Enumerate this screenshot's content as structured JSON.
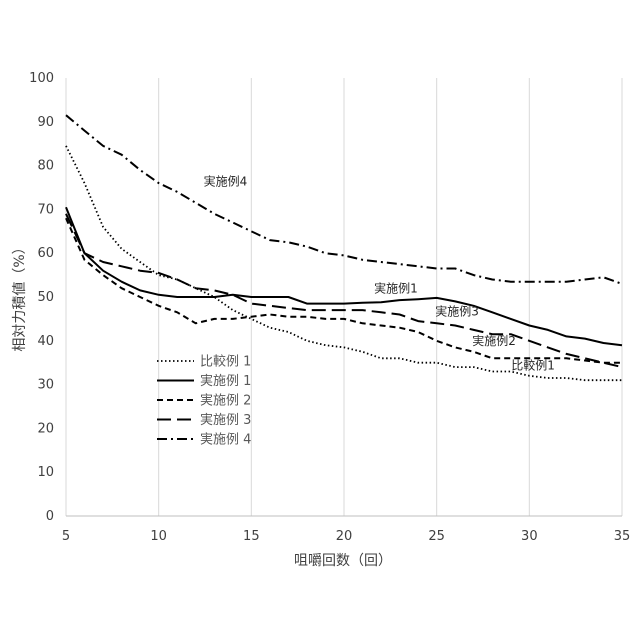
{
  "chart_data": {
    "type": "line",
    "title": "",
    "xlabel": "咀嚼回数（回）",
    "ylabel": "相対力積値（%）",
    "xlim": [
      5,
      35
    ],
    "ylim": [
      0,
      100
    ],
    "xticks": [
      5,
      10,
      15,
      20,
      25,
      30,
      35
    ],
    "yticks": [
      0,
      10,
      20,
      30,
      40,
      50,
      60,
      70,
      80,
      90,
      100
    ],
    "grid": "vertical",
    "legend_position": "left-center",
    "x": [
      5,
      6,
      7,
      8,
      9,
      10,
      11,
      12,
      13,
      14,
      15,
      16,
      17,
      18,
      19,
      20,
      21,
      22,
      23,
      24,
      25,
      26,
      27,
      28,
      29,
      30,
      31,
      32,
      33,
      34,
      35
    ],
    "series": [
      {
        "name": "比較例 1",
        "dash": "dotted",
        "annotation": "比較例1",
        "values": [
          84.5,
          76,
          66,
          61,
          58,
          55,
          54,
          52,
          50,
          47,
          45,
          43,
          42,
          40,
          39,
          38.5,
          37.5,
          36,
          36,
          35,
          35,
          34,
          34,
          33,
          33,
          32,
          31.5,
          31.5,
          31,
          31,
          31
        ]
      },
      {
        "name": "実施例 1",
        "dash": "solid",
        "annotation": "実施例1",
        "values": [
          70.5,
          60,
          56,
          53.5,
          51.5,
          50.5,
          50,
          50,
          50,
          50.5,
          50,
          50,
          50,
          48.5,
          48.5,
          48.5,
          48.7,
          48.8,
          49.3,
          49.5,
          49.8,
          49,
          48,
          46.5,
          45,
          43.5,
          42.5,
          41,
          40.5,
          39.5,
          39
        ]
      },
      {
        "name": "実施例 2",
        "dash": "short-dash",
        "annotation": "実施例2",
        "values": [
          68,
          58.5,
          55,
          52,
          50,
          48,
          46.5,
          44,
          45,
          45,
          45.5,
          46,
          45.5,
          45.5,
          45,
          45,
          44,
          43.5,
          43,
          42,
          40,
          38.5,
          37.5,
          36,
          36,
          36,
          36,
          36,
          35.5,
          35,
          35
        ]
      },
      {
        "name": "実施例 3",
        "dash": "long-dash",
        "annotation": "実施例3",
        "values": [
          69,
          60,
          58,
          57,
          56,
          55.5,
          54,
          52,
          51.5,
          50.5,
          48.5,
          48,
          47.5,
          47,
          47,
          47,
          47,
          46.5,
          46,
          44.5,
          44,
          43.5,
          42.5,
          41.5,
          41.5,
          40,
          38.5,
          37,
          36,
          35,
          34
        ]
      },
      {
        "name": "実施例 4",
        "dash": "dash-dot",
        "annotation": "実施例4",
        "values": [
          91.5,
          88,
          84.5,
          82.5,
          79,
          76,
          74,
          71.5,
          69,
          67,
          65,
          63,
          62.5,
          61.5,
          60,
          59.5,
          58.5,
          58,
          57.5,
          57,
          56.5,
          56.5,
          55,
          54,
          53.5,
          53.5,
          53.5,
          53.5,
          54,
          54.5,
          53
        ]
      }
    ]
  }
}
